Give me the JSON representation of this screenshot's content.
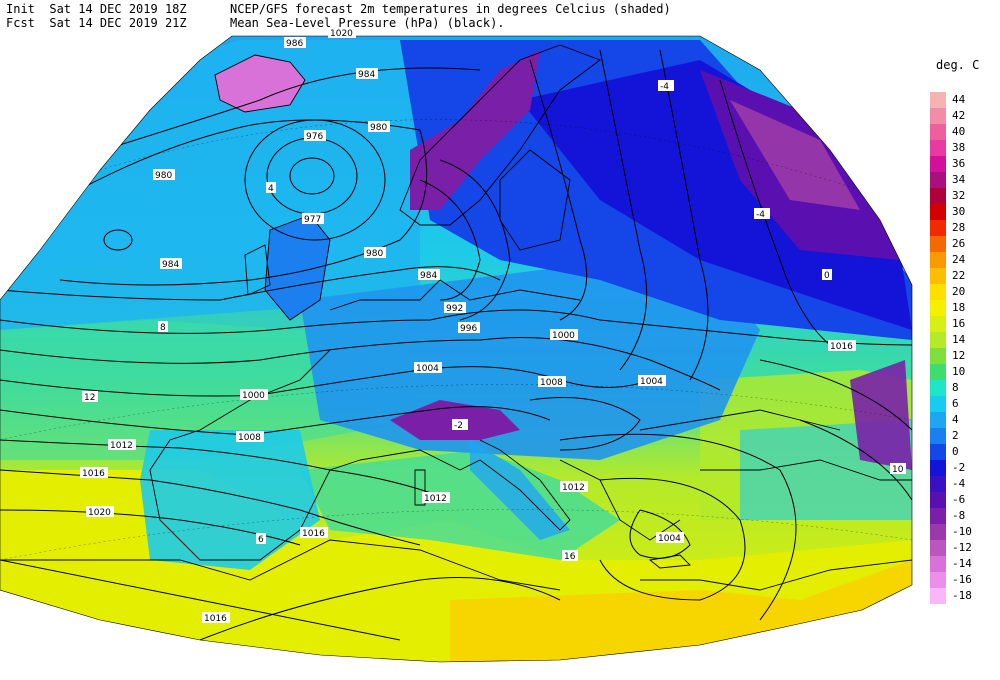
{
  "header": {
    "init_label": "Init",
    "init_time": "Sat 14 DEC 2019 18Z",
    "fcst_label": "Fcst",
    "fcst_time": "Sat 14 DEC 2019 21Z",
    "title_line1": "NCEP/GFS forecast 2m temperatures in degrees Celcius (shaded)",
    "title_line2": "Mean Sea-Level Pressure (hPa) (black)."
  },
  "legend": {
    "title": "deg. C",
    "entries": [
      {
        "label": "44",
        "color": "#f7b2b2"
      },
      {
        "label": "42",
        "color": "#f28ca8"
      },
      {
        "label": "40",
        "color": "#ee5f9e"
      },
      {
        "label": "38",
        "color": "#e83aa0"
      },
      {
        "label": "36",
        "color": "#d3109a"
      },
      {
        "label": "34",
        "color": "#a8107e"
      },
      {
        "label": "32",
        "color": "#b0003a"
      },
      {
        "label": "30",
        "color": "#d20000"
      },
      {
        "label": "28",
        "color": "#f22a00"
      },
      {
        "label": "26",
        "color": "#f56a00"
      },
      {
        "label": "24",
        "color": "#f89a00"
      },
      {
        "label": "22",
        "color": "#fbbe00"
      },
      {
        "label": "20",
        "color": "#fde000"
      },
      {
        "label": "18",
        "color": "#f4f000"
      },
      {
        "label": "16",
        "color": "#d8ef16"
      },
      {
        "label": "14",
        "color": "#b4ea2a"
      },
      {
        "label": "12",
        "color": "#7ee040"
      },
      {
        "label": "10",
        "color": "#3fdc6e"
      },
      {
        "label": "8",
        "color": "#1ee6c6"
      },
      {
        "label": "6",
        "color": "#1acbf0"
      },
      {
        "label": "4",
        "color": "#1fa6f2"
      },
      {
        "label": "2",
        "color": "#1b7ff0"
      },
      {
        "label": "0",
        "color": "#1446e8"
      },
      {
        "label": "-2",
        "color": "#1414d8"
      },
      {
        "label": "-4",
        "color": "#3a10c0"
      },
      {
        "label": "-6",
        "color": "#5a10b0"
      },
      {
        "label": "-8",
        "color": "#7a20a8"
      },
      {
        "label": "-10",
        "color": "#9a3aaa"
      },
      {
        "label": "-12",
        "color": "#bb55c0"
      },
      {
        "label": "-14",
        "color": "#d872d8"
      },
      {
        "label": "-16",
        "color": "#ea90ea"
      },
      {
        "label": "-18",
        "color": "#f8b8f8"
      }
    ]
  },
  "isobar_labels": [
    "986",
    "984",
    "976",
    "980",
    "980",
    "980",
    "984",
    "977",
    "984",
    "992",
    "996",
    "1000",
    "1004",
    "1008",
    "1004",
    "1000",
    "1008",
    "1012",
    "1016",
    "1020",
    "1016",
    "1012",
    "1016",
    "1012",
    "1004",
    "1016",
    "1020"
  ],
  "temp_labels": [
    "-4",
    "-4",
    "0",
    "4",
    "8",
    "12",
    "16",
    "-2",
    "6",
    "10"
  ]
}
